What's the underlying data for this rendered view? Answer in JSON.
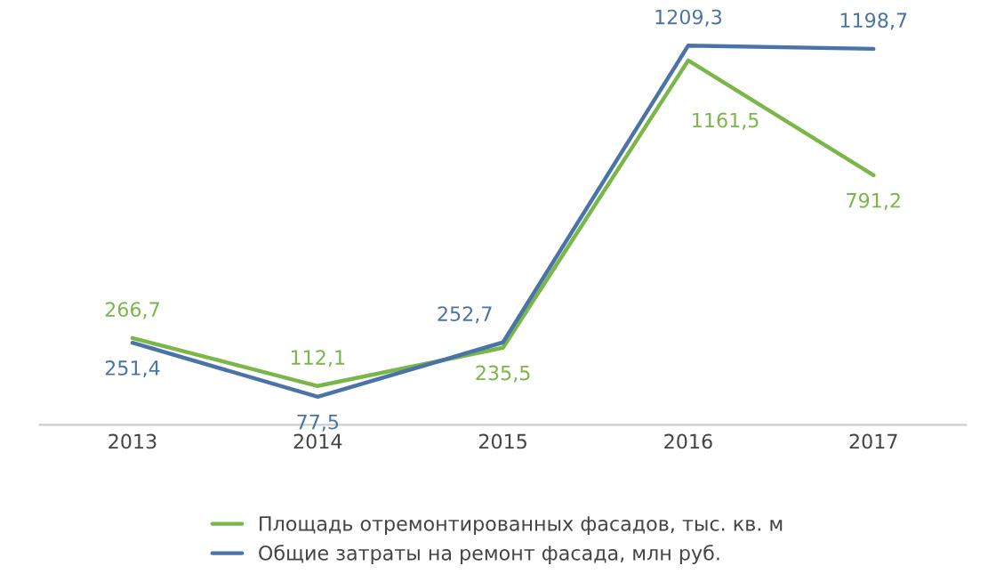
{
  "chart_data": {
    "type": "line",
    "categories": [
      "2013",
      "2014",
      "2015",
      "2016",
      "2017"
    ],
    "series": [
      {
        "name": "Площадь отремонтированных фасадов, тыс. кв. м",
        "color": "#7ab648",
        "values": [
          266.7,
          112.1,
          235.5,
          1161.5,
          791.2
        ],
        "value_labels": [
          "266,7",
          "112,1",
          "235,5",
          "1161,5",
          "791,2"
        ]
      },
      {
        "name": "Общие затраты на ремонт фасада, млн руб.",
        "color": "#4a74a8",
        "values": [
          251.4,
          77.5,
          252.7,
          1209.3,
          1198.7
        ],
        "value_labels": [
          "251,4",
          "77,5",
          "252,7",
          "1209,3",
          "1198,7"
        ]
      }
    ],
    "legend": "bottom",
    "grid": false,
    "marker": "none",
    "line_style": "solid"
  }
}
